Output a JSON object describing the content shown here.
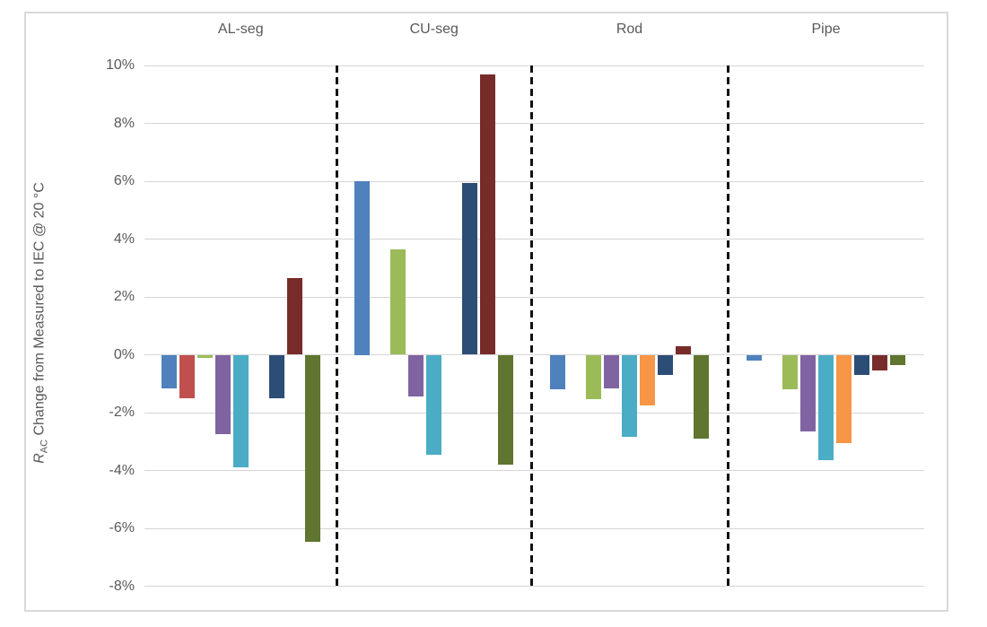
{
  "chart_data": {
    "type": "bar",
    "title": "",
    "ylabel_parts": {
      "symbol": "R",
      "subscript": "AC",
      "rest": " Change from Measured to IEC @ 20 °C"
    },
    "categories": [
      "AL-seg",
      "CU-seg",
      "Rod",
      "Pipe"
    ],
    "series": [
      {
        "name": "blue",
        "color": "#4F81BD",
        "values": [
          -1.15,
          6.0,
          -1.2,
          -0.2
        ]
      },
      {
        "name": "red",
        "color": "#C0504D",
        "values": [
          -1.5,
          null,
          null,
          null
        ]
      },
      {
        "name": "green",
        "color": "#9BBB59",
        "values": [
          -0.1,
          3.65,
          -1.55,
          -1.2
        ]
      },
      {
        "name": "purple",
        "color": "#8064A2",
        "values": [
          -2.75,
          -1.45,
          -1.15,
          -2.65
        ]
      },
      {
        "name": "cyan",
        "color": "#4BACC6",
        "values": [
          -3.9,
          -3.45,
          -2.85,
          -3.65
        ]
      },
      {
        "name": "orange",
        "color": "#F79646",
        "values": [
          null,
          null,
          -1.75,
          -3.05
        ]
      },
      {
        "name": "dark-blue",
        "color": "#2C4D75",
        "values": [
          -1.5,
          5.95,
          -0.7,
          -0.7
        ]
      },
      {
        "name": "dark-red",
        "color": "#772C2A",
        "values": [
          2.65,
          9.7,
          0.3,
          -0.55
        ]
      },
      {
        "name": "dark-green",
        "color": "#5F7530",
        "values": [
          -6.45,
          -3.8,
          -2.9,
          -0.35
        ]
      }
    ],
    "y_ticks": [
      {
        "label": "10%",
        "value": 10
      },
      {
        "label": "8%",
        "value": 8
      },
      {
        "label": "6%",
        "value": 6
      },
      {
        "label": "4%",
        "value": 4
      },
      {
        "label": "2%",
        "value": 2
      },
      {
        "label": "0%",
        "value": 0
      },
      {
        "label": "-2%",
        "value": -2
      },
      {
        "label": "-4%",
        "value": -4
      },
      {
        "label": "-6%",
        "value": -6
      },
      {
        "label": "-8%",
        "value": -8
      }
    ],
    "ylim": [
      -8,
      10
    ],
    "grid": true,
    "legend": "none",
    "group_separators": "dashed-black-between-categories",
    "colors": {
      "text": "#595959",
      "gridline": "#D5D5D5",
      "frame_border": "#D9D9D9",
      "separator": "#111111",
      "background": "#FFFFFF"
    }
  }
}
